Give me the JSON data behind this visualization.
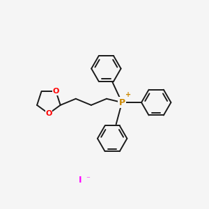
{
  "bg_color": "#f5f5f5",
  "bond_color": "#1a1a1a",
  "P_color": "#cc8800",
  "O_color": "#ff0000",
  "I_color": "#ff00ff",
  "lw": 1.4,
  "fig_width": 3.0,
  "fig_height": 3.0,
  "dpi": 100,
  "P_label": "P",
  "P_charge": "+",
  "I_text": "I",
  "I_charge": "⁻",
  "font_size_atom": 8,
  "font_size_P": 9,
  "font_size_charge": 7,
  "font_size_I": 9
}
